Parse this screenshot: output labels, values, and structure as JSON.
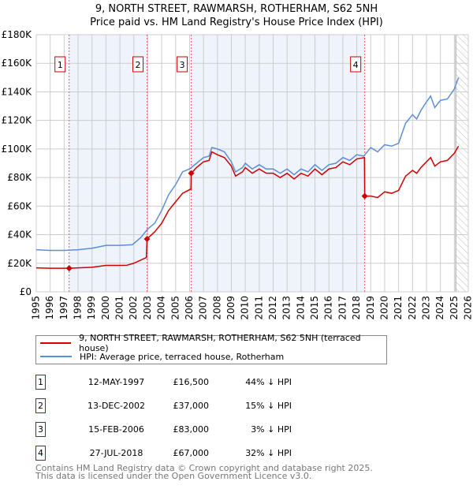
{
  "chart_data": {
    "type": "line",
    "title": "9, NORTH STREET, RAWMARSH, ROTHERHAM, S62 5NH",
    "subtitle": "Price paid vs. HM Land Registry's House Price Index (HPI)",
    "xlim": [
      1995,
      2026
    ],
    "ylim": [
      0,
      180000
    ],
    "y_ticks": [
      0,
      20000,
      40000,
      60000,
      80000,
      100000,
      120000,
      140000,
      160000,
      180000
    ],
    "y_tick_labels": [
      "£0",
      "£20K",
      "£40K",
      "£60K",
      "£80K",
      "£100K",
      "£120K",
      "£140K",
      "£160K",
      "£180K"
    ],
    "x_ticks": [
      1995,
      1996,
      1997,
      1998,
      1999,
      2000,
      2001,
      2002,
      2003,
      2004,
      2005,
      2006,
      2007,
      2008,
      2009,
      2010,
      2011,
      2012,
      2013,
      2014,
      2015,
      2016,
      2017,
      2018,
      2019,
      2020,
      2021,
      2022,
      2023,
      2024,
      2025,
      2026
    ],
    "grid": true,
    "forecast_hatch_from": 2025.1,
    "shaded_ranges": [
      [
        1997.36,
        2002.95
      ],
      [
        2006.12,
        2018.57
      ]
    ],
    "series": [
      {
        "name": "9, NORTH STREET, RAWMARSH, ROTHERHAM, S62 5NH (terraced house)",
        "color": "#cc0000",
        "x": [
          1995,
          1996,
          1997.36,
          1998,
          1999,
          2000,
          2001,
          2001.5,
          2002,
          2002.9,
          2002.95,
          2003.5,
          2004,
          2004.5,
          2005,
          2005.5,
          2006.1,
          2006.12,
          2006.5,
          2007,
          2007.4,
          2007.6,
          2008,
          2008.5,
          2009,
          2009.3,
          2009.8,
          2010,
          2010.5,
          2011,
          2011.5,
          2012,
          2012.5,
          2013,
          2013.5,
          2014,
          2014.5,
          2015,
          2015.5,
          2016,
          2016.5,
          2017,
          2017.5,
          2018,
          2018.55,
          2018.57,
          2019,
          2019.5,
          2020,
          2020.5,
          2021,
          2021.5,
          2022,
          2022.3,
          2022.6,
          2023,
          2023.3,
          2023.6,
          2024,
          2024.5,
          2025,
          2025.3
        ],
        "y": [
          16800,
          16500,
          16500,
          16800,
          17200,
          18500,
          18500,
          18600,
          20000,
          24000,
          37000,
          42000,
          48000,
          57000,
          63000,
          69000,
          72000,
          83000,
          87000,
          91000,
          92000,
          98000,
          96000,
          94000,
          88000,
          81000,
          84000,
          87000,
          83000,
          86000,
          83000,
          83000,
          80000,
          83000,
          79000,
          83000,
          81000,
          86000,
          82000,
          86000,
          87000,
          91000,
          89000,
          93000,
          94000,
          67000,
          67000,
          66000,
          70000,
          69000,
          71000,
          81000,
          85000,
          83000,
          87000,
          91000,
          94000,
          88000,
          91000,
          92000,
          97000,
          102000
        ]
      },
      {
        "name": "HPI: Average price, terraced house, Rotherham",
        "color": "#5b8fd6",
        "x": [
          1995,
          1996,
          1997,
          1998,
          1999,
          2000,
          2001,
          2001.9,
          2002.5,
          2003,
          2003.5,
          2004,
          2004.5,
          2005,
          2005.5,
          2006,
          2006.5,
          2007,
          2007.4,
          2007.6,
          2008,
          2008.5,
          2009,
          2009.3,
          2009.8,
          2010,
          2010.5,
          2011,
          2011.5,
          2012,
          2012.5,
          2013,
          2013.5,
          2014,
          2014.5,
          2015,
          2015.5,
          2016,
          2016.5,
          2017,
          2017.5,
          2018,
          2018.5,
          2019,
          2019.5,
          2020,
          2020.5,
          2021,
          2021.5,
          2022,
          2022.3,
          2022.6,
          2023,
          2023.3,
          2023.6,
          2024,
          2024.5,
          2025,
          2025.3
        ],
        "y": [
          29500,
          29000,
          29000,
          29500,
          30500,
          32500,
          32500,
          33000,
          38000,
          44000,
          48000,
          57000,
          68000,
          75000,
          84000,
          86000,
          90000,
          94000,
          95000,
          101000,
          100000,
          98000,
          91000,
          84000,
          87000,
          90000,
          86000,
          89000,
          86000,
          86000,
          83000,
          86000,
          82000,
          86000,
          84000,
          89000,
          85000,
          89000,
          90000,
          94000,
          92000,
          96000,
          95000,
          101000,
          98000,
          103000,
          102000,
          104000,
          118000,
          124000,
          121000,
          127000,
          133000,
          137000,
          129000,
          134000,
          135000,
          142000,
          150000
        ]
      }
    ],
    "sales": [
      {
        "label": "1",
        "x": 1997.36,
        "date": "12-MAY-1997",
        "price": 16500,
        "price_text": "£16,500",
        "hpi_text": "44% ↓ HPI"
      },
      {
        "label": "2",
        "x": 2002.95,
        "date": "13-DEC-2002",
        "price": 37000,
        "price_text": "£37,000",
        "hpi_text": "15% ↓ HPI"
      },
      {
        "label": "3",
        "x": 2006.12,
        "date": "15-FEB-2006",
        "price": 83000,
        "price_text": "£83,000",
        "hpi_text": "3% ↓ HPI"
      },
      {
        "label": "4",
        "x": 2018.57,
        "date": "27-JUL-2018",
        "price": 67000,
        "price_text": "£67,000",
        "hpi_text": "32% ↓ HPI"
      }
    ]
  },
  "footer": {
    "line1": "Contains HM Land Registry data © Crown copyright and database right 2025.",
    "line2": "This data is licensed under the Open Government Licence v3.0."
  }
}
